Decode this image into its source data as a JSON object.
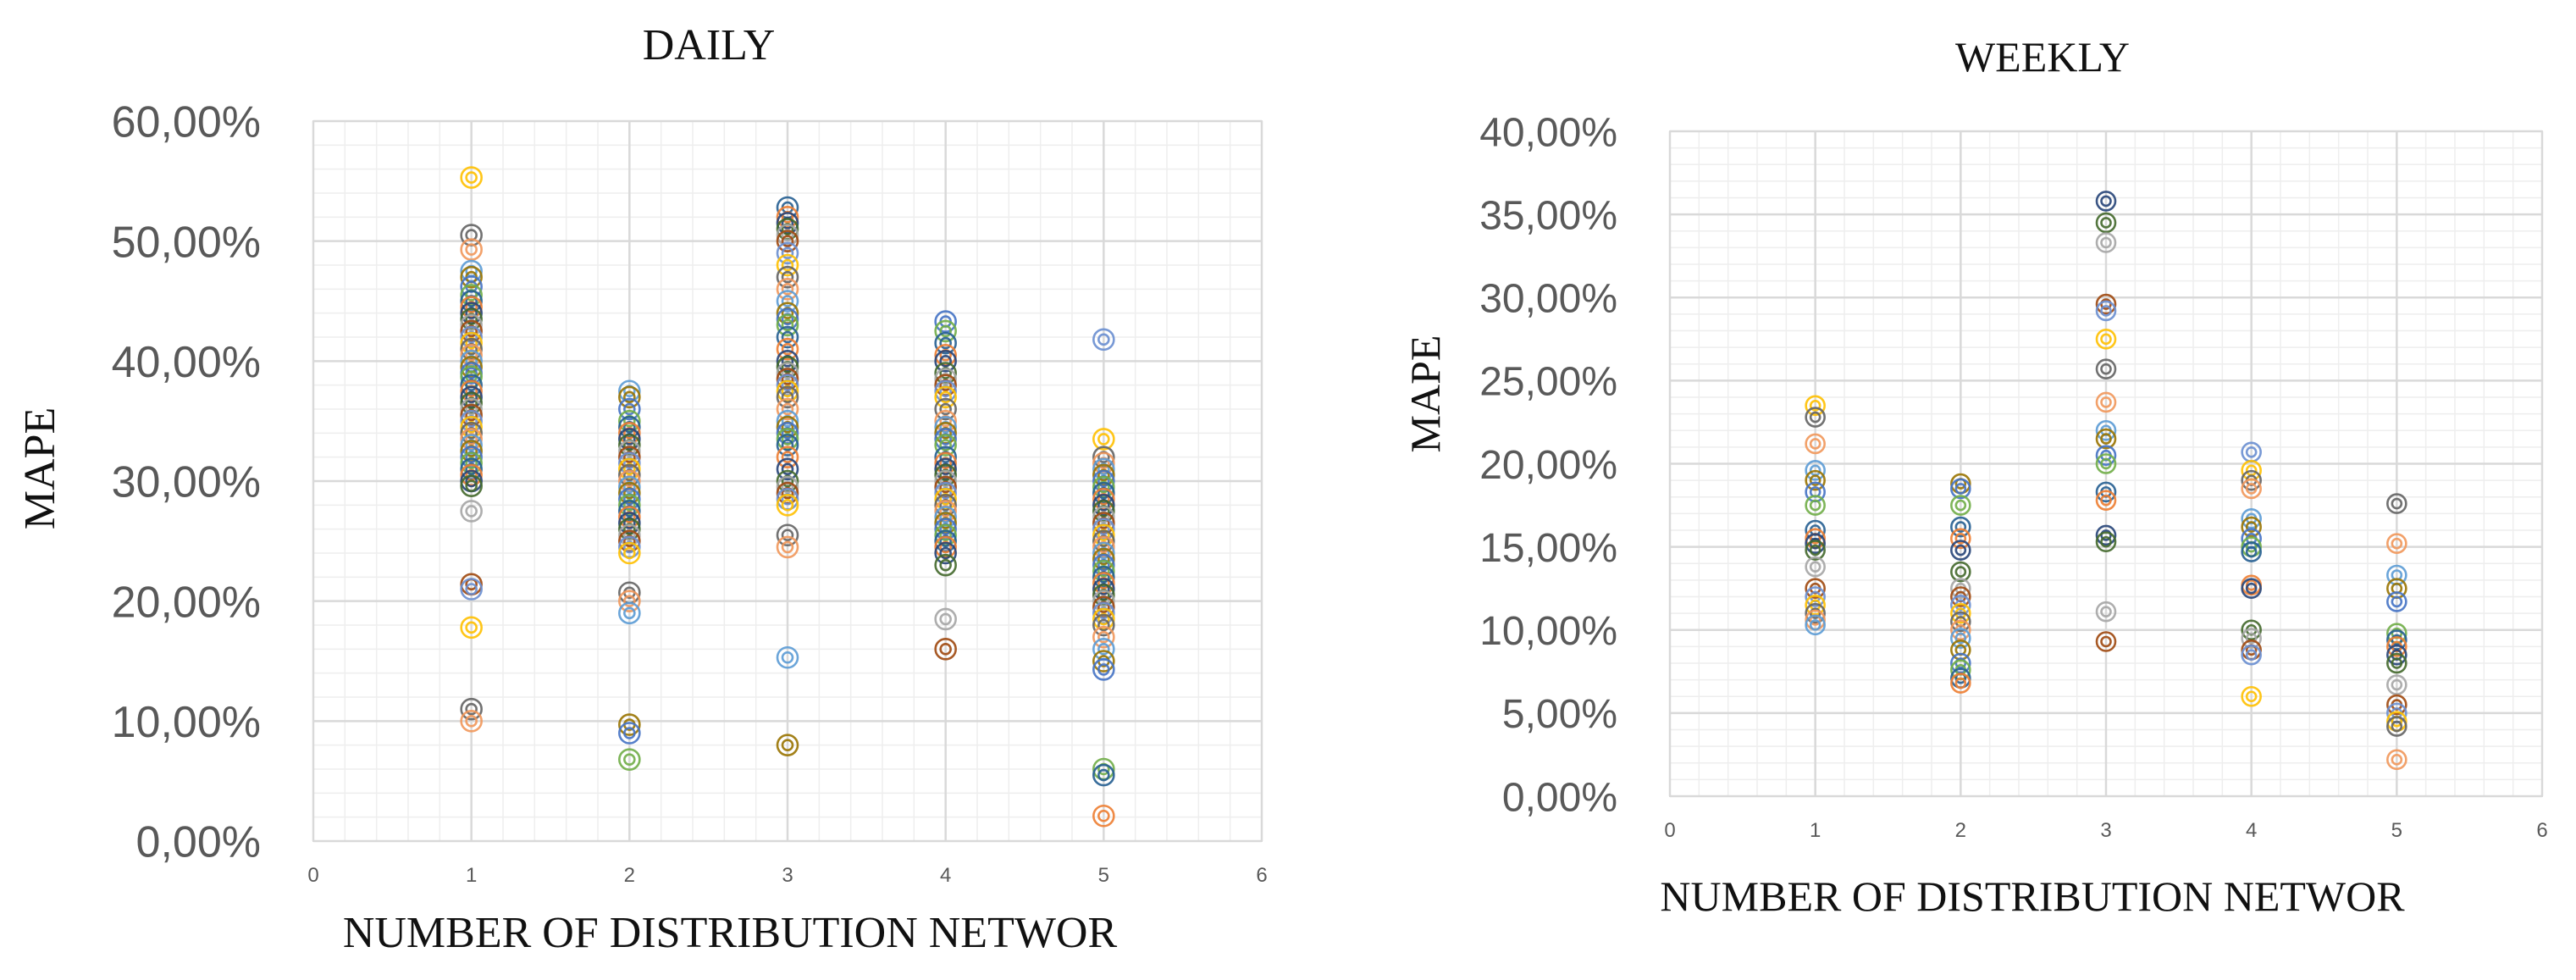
{
  "chart_data": [
    {
      "type": "scatter",
      "title": "DAILY",
      "xlabel": "NUMBER OF DISTRIBUTION NETWOR",
      "ylabel": "MAPE",
      "xlim": [
        0,
        6
      ],
      "ylim": [
        0,
        0.6
      ],
      "x_ticks": [
        "0",
        "1",
        "2",
        "3",
        "4",
        "5",
        "6"
      ],
      "y_ticks": [
        "0,00%",
        "10,00%",
        "20,00%",
        "30,00%",
        "40,00%",
        "50,00%",
        "60,00%"
      ],
      "grid": true,
      "marker": "double-circle",
      "points_by_x": [
        {
          "x": 1,
          "y": [
            0.553,
            0.505,
            0.493,
            0.475,
            0.47,
            0.462,
            0.455,
            0.45,
            0.445,
            0.44,
            0.435,
            0.43,
            0.425,
            0.42,
            0.415,
            0.41,
            0.405,
            0.4,
            0.395,
            0.39,
            0.387,
            0.38,
            0.375,
            0.37,
            0.365,
            0.36,
            0.355,
            0.35,
            0.345,
            0.34,
            0.335,
            0.33,
            0.325,
            0.32,
            0.315,
            0.31,
            0.305,
            0.3,
            0.296,
            0.275,
            0.214,
            0.21,
            0.178,
            0.11,
            0.1
          ]
        },
        {
          "x": 2,
          "y": [
            0.375,
            0.37,
            0.36,
            0.35,
            0.345,
            0.34,
            0.335,
            0.33,
            0.325,
            0.32,
            0.315,
            0.31,
            0.305,
            0.3,
            0.295,
            0.29,
            0.285,
            0.28,
            0.275,
            0.27,
            0.265,
            0.26,
            0.255,
            0.25,
            0.245,
            0.24,
            0.207,
            0.2,
            0.19,
            0.097,
            0.09,
            0.068
          ]
        },
        {
          "x": 3,
          "y": [
            0.528,
            0.52,
            0.515,
            0.51,
            0.505,
            0.5,
            0.49,
            0.48,
            0.47,
            0.46,
            0.45,
            0.44,
            0.435,
            0.43,
            0.42,
            0.41,
            0.4,
            0.395,
            0.39,
            0.385,
            0.38,
            0.375,
            0.37,
            0.36,
            0.35,
            0.345,
            0.34,
            0.335,
            0.33,
            0.32,
            0.31,
            0.3,
            0.295,
            0.29,
            0.285,
            0.28,
            0.255,
            0.245,
            0.153,
            0.08
          ]
        },
        {
          "x": 4,
          "y": [
            0.433,
            0.425,
            0.415,
            0.405,
            0.4,
            0.39,
            0.385,
            0.38,
            0.375,
            0.37,
            0.36,
            0.35,
            0.345,
            0.34,
            0.335,
            0.33,
            0.32,
            0.315,
            0.31,
            0.305,
            0.3,
            0.295,
            0.29,
            0.285,
            0.28,
            0.275,
            0.27,
            0.265,
            0.26,
            0.255,
            0.25,
            0.245,
            0.24,
            0.23,
            0.185,
            0.16
          ]
        },
        {
          "x": 5,
          "y": [
            0.418,
            0.335,
            0.32,
            0.315,
            0.31,
            0.305,
            0.3,
            0.295,
            0.29,
            0.285,
            0.28,
            0.275,
            0.27,
            0.265,
            0.26,
            0.255,
            0.25,
            0.245,
            0.24,
            0.235,
            0.23,
            0.225,
            0.22,
            0.215,
            0.21,
            0.205,
            0.2,
            0.195,
            0.19,
            0.185,
            0.18,
            0.17,
            0.16,
            0.15,
            0.143,
            0.06,
            0.055,
            0.021
          ]
        }
      ]
    },
    {
      "type": "scatter",
      "title": "WEEKLY",
      "xlabel": "NUMBER OF DISTRIBUTION NETWOR",
      "ylabel": "MAPE",
      "xlim": [
        0,
        6
      ],
      "ylim": [
        0,
        0.4
      ],
      "x_ticks": [
        "0",
        "1",
        "2",
        "3",
        "4",
        "5",
        "6"
      ],
      "y_ticks": [
        "0,00%",
        "5,00%",
        "10,00%",
        "15,00%",
        "20,00%",
        "25,00%",
        "30,00%",
        "35,00%",
        "40,00%"
      ],
      "grid": true,
      "marker": "double-circle",
      "points_by_x": [
        {
          "x": 1,
          "y": [
            0.235,
            0.228,
            0.212,
            0.196,
            0.19,
            0.183,
            0.175,
            0.16,
            0.155,
            0.152,
            0.148,
            0.138,
            0.125,
            0.12,
            0.115,
            0.11,
            0.106,
            0.103
          ]
        },
        {
          "x": 2,
          "y": [
            0.188,
            0.185,
            0.175,
            0.162,
            0.155,
            0.148,
            0.135,
            0.125,
            0.12,
            0.115,
            0.11,
            0.105,
            0.1,
            0.095,
            0.088,
            0.08,
            0.076,
            0.071,
            0.068
          ]
        },
        {
          "x": 3,
          "y": [
            0.358,
            0.345,
            0.333,
            0.296,
            0.292,
            0.275,
            0.257,
            0.237,
            0.22,
            0.215,
            0.205,
            0.2,
            0.183,
            0.178,
            0.157,
            0.153,
            0.111,
            0.093
          ]
        },
        {
          "x": 4,
          "y": [
            0.207,
            0.196,
            0.19,
            0.185,
            0.167,
            0.162,
            0.155,
            0.15,
            0.147,
            0.127,
            0.125,
            0.1,
            0.095,
            0.088,
            0.085,
            0.06
          ]
        },
        {
          "x": 5,
          "y": [
            0.176,
            0.152,
            0.133,
            0.125,
            0.117,
            0.098,
            0.094,
            0.09,
            0.085,
            0.08,
            0.067,
            0.055,
            0.05,
            0.045,
            0.042,
            0.022
          ]
        }
      ]
    }
  ],
  "colors": {
    "palette": [
      "#4472C4",
      "#ED7D31",
      "#A5A5A5",
      "#FFC000",
      "#5B9BD5",
      "#70AD47",
      "#264478",
      "#9E480E",
      "#636363",
      "#997300",
      "#255E91",
      "#43682B",
      "#698ED0",
      "#F1975A"
    ],
    "grid_major": "#d9d9d9",
    "grid_minor": "#eeeeee",
    "axis_text": "#595959"
  }
}
